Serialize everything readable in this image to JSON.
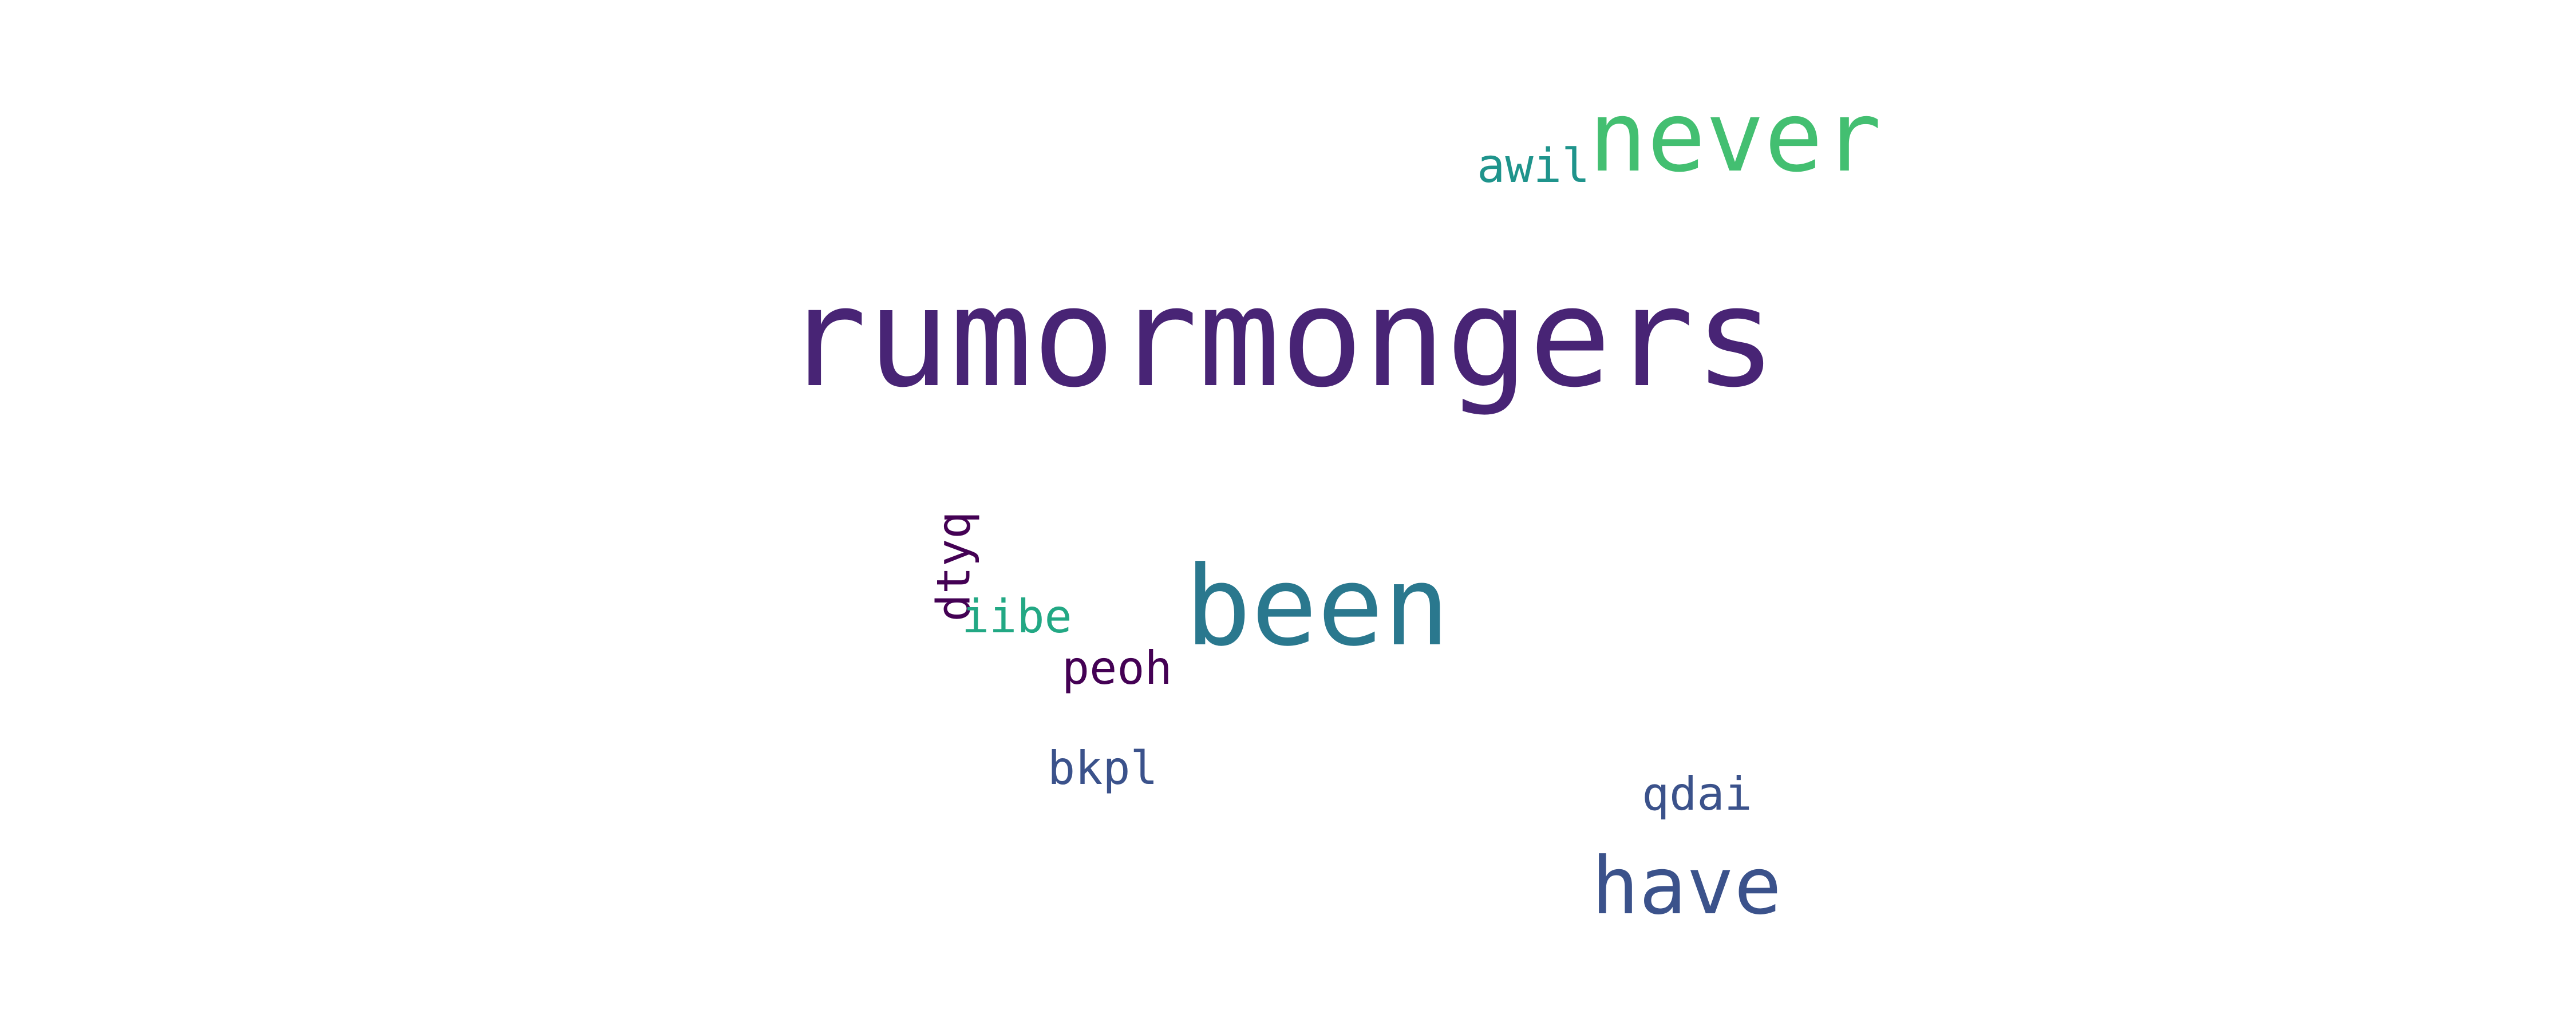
{
  "words": {
    "rumormongers": {
      "text": "rumormongers",
      "color": "#482475"
    },
    "never": {
      "text": "never",
      "color": "#43bf71"
    },
    "awil": {
      "text": "awil",
      "color": "#1f948c"
    },
    "been": {
      "text": "been",
      "color": "#2a788e"
    },
    "dtyq": {
      "text": "dtyq",
      "color": "#440154"
    },
    "iibe": {
      "text": "iibe",
      "color": "#22a884"
    },
    "peoh": {
      "text": "peoh",
      "color": "#440154"
    },
    "bkpl": {
      "text": "bkpl",
      "color": "#3b528b"
    },
    "qdai": {
      "text": "qdai",
      "color": "#3b528b"
    },
    "have": {
      "text": "have",
      "color": "#3b528b"
    }
  },
  "background": "#ffffff"
}
